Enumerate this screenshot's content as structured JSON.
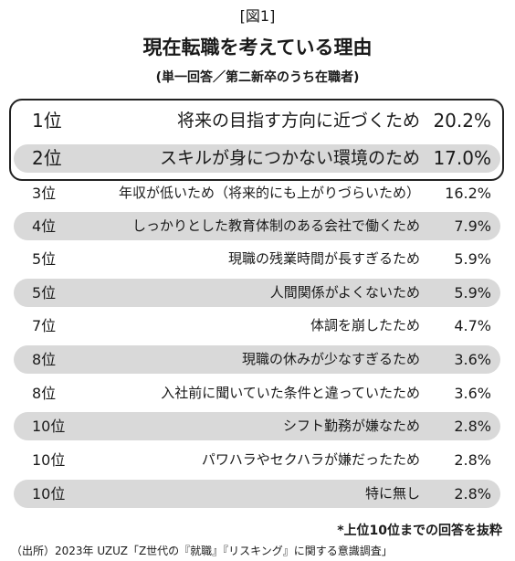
{
  "header": {
    "figure_label": "[図1]",
    "title": "現在転職を考えている理由",
    "subtitle": "(単一回答／第二新卒のうち在職者)"
  },
  "table": {
    "rows": [
      [
        "1位",
        "将来の目指す方向に近づくため",
        "20.2%"
      ],
      [
        "2位",
        "スキルが身につかない環境のため",
        "17.0%"
      ],
      [
        "3位",
        "年収が低いため（将来的にも上がりづらいため）",
        "16.2%"
      ],
      [
        "4位",
        "しっかりとした教育体制のある会社で働くため",
        "7.9%"
      ],
      [
        "5位",
        "現職の残業時間が長すぎるため",
        "5.9%"
      ],
      [
        "5位",
        "人間関係がよくないため",
        "5.9%"
      ],
      [
        "7位",
        "体調を崩したため",
        "4.7%"
      ],
      [
        "8位",
        "現職の休みが少なすぎるため",
        "3.6%"
      ],
      [
        "8位",
        "入社前に聞いていた条件と違っていたため",
        "3.6%"
      ],
      [
        "10位",
        "シフト勤務が嫌なため",
        "2.8%"
      ],
      [
        "10位",
        "パワハラやセクハラが嫌だったため",
        "2.8%"
      ],
      [
        "10位",
        "特に無し",
        "2.8%"
      ]
    ]
  },
  "footnote": "*上位10位までの回答を抜粋",
  "source": "（出所）2023年 UZUZ「Z世代の『就職』『リスキング』に関する意識調査」"
}
